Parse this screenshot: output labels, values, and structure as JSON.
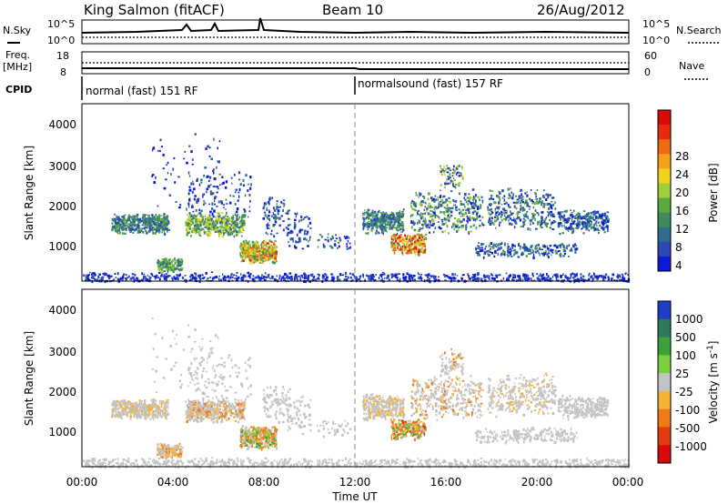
{
  "header": {
    "station": "King Salmon (fitACF)",
    "beam": "Beam 10",
    "date": "26/Aug/2012"
  },
  "noise_panel": {
    "left_label": "N.Sky",
    "right_label": "N.Search",
    "ticks_left": [
      "10^5",
      "10^0"
    ],
    "ticks_right": [
      "10^5",
      "10^0"
    ]
  },
  "freq_panel": {
    "left_label_1": "Freq.",
    "left_label_2": "[MHz]",
    "right_label": "Nave",
    "ticks_left": [
      "18",
      "8"
    ],
    "ticks_right": [
      "60",
      "0"
    ]
  },
  "cpid_panel": {
    "label": "CPID",
    "segments": [
      "normal (fast) 151 RF",
      "normalsound (fast) 157 RF"
    ]
  },
  "chart_data": [
    {
      "type": "heatmap",
      "panel": "power",
      "ylabel": "Slant Range [km]",
      "yticks": [
        "4000",
        "3000",
        "2000",
        "1000"
      ],
      "ylim": [
        200,
        4600
      ],
      "xlim": [
        "00:00",
        "24:00"
      ],
      "colorbar_label": "Power [dB]",
      "colorbar_ticks": [
        "28",
        "24",
        "20",
        "16",
        "12",
        "8",
        "4"
      ],
      "colors": [
        "#0b1bd9",
        "#2d49b8",
        "#2e6d8f",
        "#3f8b5f",
        "#5aa93e",
        "#9ccf3b",
        "#f1d21f",
        "#f7a01a",
        "#f06a14",
        "#e52a0e",
        "#d80b0b"
      ]
    },
    {
      "type": "heatmap",
      "panel": "velocity",
      "ylabel": "Slant Range [km]",
      "yticks": [
        "4000",
        "3000",
        "2000",
        "1000"
      ],
      "ylim": [
        200,
        4600
      ],
      "xlim": [
        "00:00",
        "24:00"
      ],
      "xlabel": "Time UT",
      "xticks": [
        "00:00",
        "04:00",
        "08:00",
        "12:00",
        "16:00",
        "20:00",
        "00:00"
      ],
      "colorbar_label": "Velocity [m s",
      "colorbar_label_sup": "-1",
      "colorbar_ticks": [
        "1000",
        "500",
        "100",
        "25",
        "-25",
        "-100",
        "-500",
        "-1000"
      ],
      "colors": [
        "#1f3fc8",
        "#2c7a5a",
        "#3ea03a",
        "#79cf3d",
        "#c3c3c3",
        "#f6b233",
        "#f07a14",
        "#e43b10",
        "#d80b0b"
      ]
    }
  ]
}
